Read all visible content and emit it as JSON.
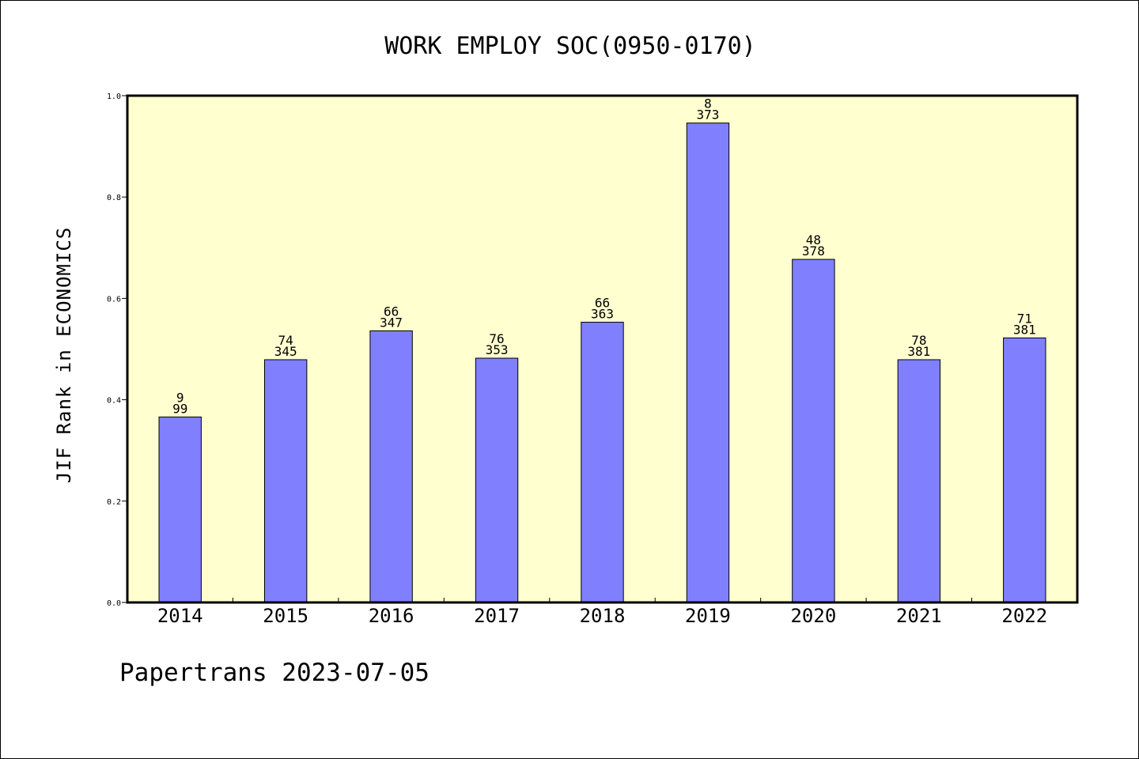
{
  "chart_data": {
    "type": "bar",
    "title": "WORK EMPLOY SOC(0950-0170)",
    "ylabel": "JIF Rank in ECONOMICS",
    "xlabel": "",
    "ylim": [
      0,
      1
    ],
    "yticks": [
      "0.0",
      "0.2",
      "0.4",
      "0.6",
      "0.8",
      "1.0"
    ],
    "categories": [
      "2014",
      "2015",
      "2016",
      "2017",
      "2018",
      "2019",
      "2020",
      "2021",
      "2022"
    ],
    "values": [
      0.366,
      0.479,
      0.536,
      0.482,
      0.553,
      0.946,
      0.677,
      0.479,
      0.522
    ],
    "rank_labels": [
      "9",
      "74",
      "66",
      "76",
      "66",
      "8",
      "48",
      "78",
      "71"
    ],
    "total_labels": [
      "99",
      "345",
      "347",
      "353",
      "363",
      "373",
      "378",
      "381",
      "381"
    ],
    "grid": false,
    "legend": "none",
    "colors": {
      "bar": "#8080ff",
      "plot_background": "#ffffd0",
      "axis": "#000000"
    }
  },
  "footer": {
    "text": "Papertrans 2023-07-05"
  }
}
